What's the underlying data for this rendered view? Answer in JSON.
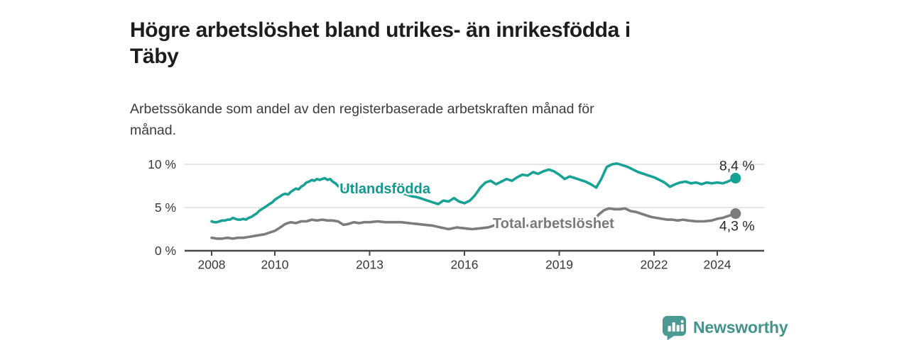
{
  "title": {
    "line1": "Högre arbetslöshet bland utrikes- än inrikesfödda i",
    "line2": "Täby"
  },
  "subtitle": {
    "line1": "Arbetssökande som andel av den registerbaserade arbetskraften månad för",
    "line2": "månad."
  },
  "footer": {
    "brand": "Newsworthy",
    "logo_icon": "bar-chart-speech-bubble-icon",
    "brand_color": "#42938c",
    "logo_color": "#4a9a93"
  },
  "colors": {
    "title_text": "#1d1d1d",
    "subtitle_text": "#3c3c3c",
    "axis_line": "#474747",
    "gridline": "#d8d8d8",
    "tick_label": "#383838",
    "value_label": "#2a2a2a",
    "series_foreign_born": "#18a296",
    "series_total": "#7c7c7c"
  },
  "chart_data": {
    "type": "line",
    "title": "Högre arbetslöshet bland utrikes- än inrikesfödda i Täby",
    "subtitle": "Arbetssökande som andel av den registerbaserade arbetskraften månad för månad.",
    "xlabel": "",
    "ylabel": "",
    "unit": "%",
    "xlim": [
      2007.3,
      2025.5
    ],
    "ylim": [
      0,
      11
    ],
    "grid": "horizontal",
    "legend": "inline-labels",
    "yticks": [
      {
        "value": 0,
        "label": "0 %"
      },
      {
        "value": 5,
        "label": "5 %"
      },
      {
        "value": 10,
        "label": "10 %"
      }
    ],
    "xticks": [
      {
        "value": 2008,
        "label": "2008"
      },
      {
        "value": 2010,
        "label": "2010"
      },
      {
        "value": 2013,
        "label": "2013"
      },
      {
        "value": 2016,
        "label": "2016"
      },
      {
        "value": 2019,
        "label": "2019"
      },
      {
        "value": 2022,
        "label": "2022"
      },
      {
        "value": 2024,
        "label": "2024"
      }
    ],
    "series": [
      {
        "name": "Utlandsfödda",
        "color": "#18a296",
        "label_color": "#12998e",
        "inline_label": {
          "text": "Utlandsfödda",
          "year": 2012.05,
          "value": 7.2
        },
        "end_label": "8,4 %",
        "end_label_pos": "above",
        "end_value": 8.4,
        "points": [
          [
            2008.0,
            3.4
          ],
          [
            2008.08,
            3.3
          ],
          [
            2008.17,
            3.3
          ],
          [
            2008.25,
            3.4
          ],
          [
            2008.33,
            3.5
          ],
          [
            2008.42,
            3.5
          ],
          [
            2008.5,
            3.6
          ],
          [
            2008.58,
            3.6
          ],
          [
            2008.67,
            3.8
          ],
          [
            2008.75,
            3.7
          ],
          [
            2008.83,
            3.6
          ],
          [
            2008.92,
            3.6
          ],
          [
            2009.0,
            3.7
          ],
          [
            2009.08,
            3.6
          ],
          [
            2009.17,
            3.8
          ],
          [
            2009.25,
            3.9
          ],
          [
            2009.33,
            4.1
          ],
          [
            2009.42,
            4.3
          ],
          [
            2009.5,
            4.6
          ],
          [
            2009.58,
            4.8
          ],
          [
            2009.67,
            5.0
          ],
          [
            2009.75,
            5.2
          ],
          [
            2009.83,
            5.4
          ],
          [
            2009.92,
            5.6
          ],
          [
            2010.0,
            5.9
          ],
          [
            2010.08,
            6.1
          ],
          [
            2010.17,
            6.3
          ],
          [
            2010.25,
            6.5
          ],
          [
            2010.33,
            6.6
          ],
          [
            2010.42,
            6.5
          ],
          [
            2010.5,
            6.8
          ],
          [
            2010.58,
            7.0
          ],
          [
            2010.67,
            7.2
          ],
          [
            2010.75,
            7.1
          ],
          [
            2010.83,
            7.4
          ],
          [
            2010.92,
            7.6
          ],
          [
            2011.0,
            7.9
          ],
          [
            2011.08,
            8.0
          ],
          [
            2011.17,
            8.2
          ],
          [
            2011.25,
            8.1
          ],
          [
            2011.33,
            8.3
          ],
          [
            2011.42,
            8.2
          ],
          [
            2011.5,
            8.3
          ],
          [
            2011.58,
            8.4
          ],
          [
            2011.67,
            8.2
          ],
          [
            2011.75,
            8.3
          ],
          [
            2011.83,
            8.0
          ],
          [
            2011.92,
            7.8
          ],
          [
            2012.0,
            7.5
          ],
          [
            2012.08,
            7.3
          ],
          [
            2012.17,
            7.1
          ],
          [
            2012.25,
            7.2
          ],
          [
            2012.33,
            7.0
          ],
          [
            2012.42,
            7.2
          ],
          [
            2012.5,
            7.4
          ],
          [
            2012.58,
            7.3
          ],
          [
            2012.67,
            7.5
          ],
          [
            2012.83,
            7.4
          ],
          [
            2013.0,
            7.5
          ],
          [
            2013.17,
            7.4
          ],
          [
            2013.33,
            7.5
          ],
          [
            2013.5,
            7.3
          ],
          [
            2013.67,
            7.1
          ],
          [
            2013.83,
            6.9
          ],
          [
            2014.0,
            6.7
          ],
          [
            2014.17,
            6.5
          ],
          [
            2014.33,
            6.3
          ],
          [
            2014.5,
            6.2
          ],
          [
            2014.67,
            6.0
          ],
          [
            2014.83,
            5.8
          ],
          [
            2015.0,
            5.6
          ],
          [
            2015.17,
            5.4
          ],
          [
            2015.33,
            5.8
          ],
          [
            2015.5,
            5.7
          ],
          [
            2015.67,
            6.1
          ],
          [
            2015.83,
            5.7
          ],
          [
            2016.0,
            5.5
          ],
          [
            2016.17,
            5.8
          ],
          [
            2016.33,
            6.4
          ],
          [
            2016.5,
            7.3
          ],
          [
            2016.67,
            7.9
          ],
          [
            2016.83,
            8.1
          ],
          [
            2017.0,
            7.7
          ],
          [
            2017.17,
            8.0
          ],
          [
            2017.33,
            8.3
          ],
          [
            2017.5,
            8.1
          ],
          [
            2017.67,
            8.5
          ],
          [
            2017.83,
            8.8
          ],
          [
            2018.0,
            8.7
          ],
          [
            2018.17,
            9.1
          ],
          [
            2018.33,
            8.9
          ],
          [
            2018.5,
            9.2
          ],
          [
            2018.67,
            9.4
          ],
          [
            2018.83,
            9.2
          ],
          [
            2019.0,
            8.8
          ],
          [
            2019.17,
            8.3
          ],
          [
            2019.33,
            8.6
          ],
          [
            2019.5,
            8.4
          ],
          [
            2019.67,
            8.2
          ],
          [
            2019.83,
            8.0
          ],
          [
            2020.0,
            7.7
          ],
          [
            2020.17,
            7.3
          ],
          [
            2020.33,
            8.3
          ],
          [
            2020.5,
            9.7
          ],
          [
            2020.67,
            10.0
          ],
          [
            2020.83,
            10.1
          ],
          [
            2021.0,
            9.9
          ],
          [
            2021.17,
            9.7
          ],
          [
            2021.33,
            9.4
          ],
          [
            2021.5,
            9.1
          ],
          [
            2021.67,
            8.9
          ],
          [
            2021.83,
            8.7
          ],
          [
            2022.0,
            8.5
          ],
          [
            2022.17,
            8.2
          ],
          [
            2022.33,
            7.9
          ],
          [
            2022.5,
            7.4
          ],
          [
            2022.67,
            7.7
          ],
          [
            2022.83,
            7.9
          ],
          [
            2023.0,
            8.0
          ],
          [
            2023.17,
            7.8
          ],
          [
            2023.33,
            7.9
          ],
          [
            2023.5,
            7.7
          ],
          [
            2023.67,
            7.9
          ],
          [
            2023.83,
            7.8
          ],
          [
            2024.0,
            7.9
          ],
          [
            2024.17,
            7.8
          ],
          [
            2024.33,
            8.0
          ],
          [
            2024.58,
            8.4
          ]
        ]
      },
      {
        "name": "Total arbetslöshet",
        "color": "#7c7c7c",
        "label_color": "#7a7a7a",
        "inline_label": {
          "text": "Total arbetslöshet",
          "year": 2016.9,
          "value": 3.2
        },
        "end_label": "4,3 %",
        "end_label_pos": "below",
        "end_value": 4.3,
        "points": [
          [
            2008.0,
            1.5
          ],
          [
            2008.17,
            1.4
          ],
          [
            2008.33,
            1.4
          ],
          [
            2008.5,
            1.5
          ],
          [
            2008.67,
            1.4
          ],
          [
            2008.83,
            1.5
          ],
          [
            2009.0,
            1.5
          ],
          [
            2009.17,
            1.6
          ],
          [
            2009.33,
            1.7
          ],
          [
            2009.5,
            1.8
          ],
          [
            2009.67,
            1.9
          ],
          [
            2009.83,
            2.1
          ],
          [
            2010.0,
            2.3
          ],
          [
            2010.17,
            2.7
          ],
          [
            2010.33,
            3.1
          ],
          [
            2010.5,
            3.3
          ],
          [
            2010.67,
            3.2
          ],
          [
            2010.83,
            3.4
          ],
          [
            2011.0,
            3.4
          ],
          [
            2011.17,
            3.6
          ],
          [
            2011.33,
            3.5
          ],
          [
            2011.5,
            3.6
          ],
          [
            2011.67,
            3.5
          ],
          [
            2011.83,
            3.5
          ],
          [
            2012.0,
            3.4
          ],
          [
            2012.17,
            3.0
          ],
          [
            2012.33,
            3.1
          ],
          [
            2012.5,
            3.3
          ],
          [
            2012.67,
            3.2
          ],
          [
            2012.83,
            3.3
          ],
          [
            2013.0,
            3.3
          ],
          [
            2013.25,
            3.4
          ],
          [
            2013.5,
            3.3
          ],
          [
            2013.75,
            3.3
          ],
          [
            2014.0,
            3.3
          ],
          [
            2014.25,
            3.2
          ],
          [
            2014.5,
            3.1
          ],
          [
            2014.75,
            3.0
          ],
          [
            2015.0,
            2.9
          ],
          [
            2015.25,
            2.7
          ],
          [
            2015.5,
            2.5
          ],
          [
            2015.75,
            2.7
          ],
          [
            2016.0,
            2.6
          ],
          [
            2016.25,
            2.5
          ],
          [
            2016.5,
            2.6
          ],
          [
            2016.75,
            2.7
          ],
          [
            2017.0,
            3.0
          ],
          [
            2017.25,
            3.1
          ],
          [
            2017.5,
            2.9
          ],
          [
            2017.75,
            2.9
          ],
          [
            2018.0,
            2.9
          ],
          [
            2018.33,
            3.0
          ],
          [
            2018.67,
            3.0
          ],
          [
            2019.0,
            3.0
          ],
          [
            2019.33,
            3.1
          ],
          [
            2019.67,
            3.2
          ],
          [
            2019.92,
            3.3
          ],
          [
            2020.08,
            3.5
          ],
          [
            2020.25,
            4.2
          ],
          [
            2020.42,
            4.7
          ],
          [
            2020.58,
            4.9
          ],
          [
            2020.75,
            4.8
          ],
          [
            2020.92,
            4.8
          ],
          [
            2021.08,
            4.9
          ],
          [
            2021.25,
            4.6
          ],
          [
            2021.42,
            4.5
          ],
          [
            2021.58,
            4.3
          ],
          [
            2021.75,
            4.1
          ],
          [
            2021.92,
            3.9
          ],
          [
            2022.08,
            3.8
          ],
          [
            2022.25,
            3.7
          ],
          [
            2022.42,
            3.6
          ],
          [
            2022.58,
            3.6
          ],
          [
            2022.75,
            3.5
          ],
          [
            2022.92,
            3.6
          ],
          [
            2023.08,
            3.5
          ],
          [
            2023.33,
            3.4
          ],
          [
            2023.58,
            3.4
          ],
          [
            2023.83,
            3.5
          ],
          [
            2024.0,
            3.7
          ],
          [
            2024.17,
            3.8
          ],
          [
            2024.33,
            4.0
          ],
          [
            2024.58,
            4.3
          ]
        ]
      }
    ]
  }
}
